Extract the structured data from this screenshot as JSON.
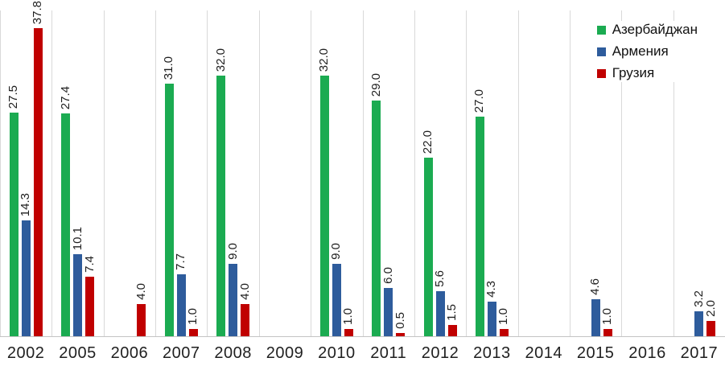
{
  "chart_data": {
    "type": "bar",
    "title": "",
    "categories": [
      "2002",
      "2005",
      "2006",
      "2007",
      "2008",
      "2009",
      "2010",
      "2011",
      "2012",
      "2013",
      "2014",
      "2015",
      "2016",
      "2017"
    ],
    "series": [
      {
        "name": "Азербайджан",
        "color": "#1BAB51",
        "values": [
          27.5,
          27.4,
          null,
          31.0,
          32.0,
          null,
          32.0,
          29.0,
          22.0,
          27.0,
          null,
          null,
          null,
          null
        ]
      },
      {
        "name": "Армения",
        "color": "#2E5C9C",
        "values": [
          14.3,
          10.1,
          null,
          7.7,
          9.0,
          null,
          9.0,
          6.0,
          5.6,
          4.3,
          null,
          4.6,
          null,
          3.2
        ]
      },
      {
        "name": "Грузия",
        "color": "#C00000",
        "values": [
          37.8,
          7.4,
          4.0,
          1.0,
          4.0,
          null,
          1.0,
          0.5,
          1.5,
          1.0,
          null,
          1.0,
          null,
          2.0
        ]
      }
    ],
    "value_label_decimals": 1,
    "value_labels_rotated": true,
    "xlabel": "",
    "ylabel": "",
    "ylim": [
      0,
      40
    ],
    "y_axis_visible": false,
    "gridlines": "vertical",
    "gridline_color": "#D9D9D9",
    "axis_line_color": "#C4C4C4",
    "text_color": "#1F1F1F",
    "legend_position": "top-right"
  }
}
